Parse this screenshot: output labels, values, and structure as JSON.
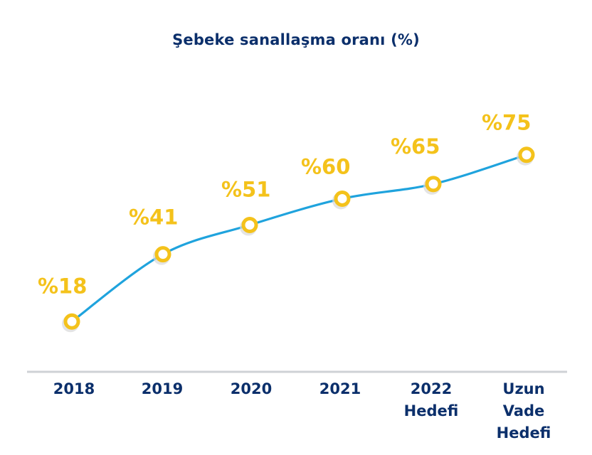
{
  "chart_data": {
    "type": "line",
    "title": "Şebeke sanallaşma oranı (%)",
    "xlabel": "",
    "ylabel": "",
    "categories": [
      "2018",
      "2019",
      "2020",
      "2021",
      "2022 Hedefi",
      "Uzun Vade Hedefi"
    ],
    "category_lines": [
      [
        "2018"
      ],
      [
        "2019"
      ],
      [
        "2020"
      ],
      [
        "2021"
      ],
      [
        "2022",
        "Hedefi"
      ],
      [
        "Uzun",
        "Vade",
        "Hedefi"
      ]
    ],
    "series": [
      {
        "values": [
          18,
          41,
          51,
          60,
          65,
          75
        ],
        "labels": [
          "%18",
          "%41",
          "%51",
          "%60",
          "%65",
          "%75"
        ]
      }
    ],
    "ylim": [
      0,
      100
    ],
    "grid": false,
    "legend": "none"
  },
  "colors": {
    "line": "#1fa3dd",
    "marker": "#f4c21b",
    "label": "#f4c21b",
    "axis_text": "#0b2f6b",
    "baseline": "#cfd2d6"
  }
}
